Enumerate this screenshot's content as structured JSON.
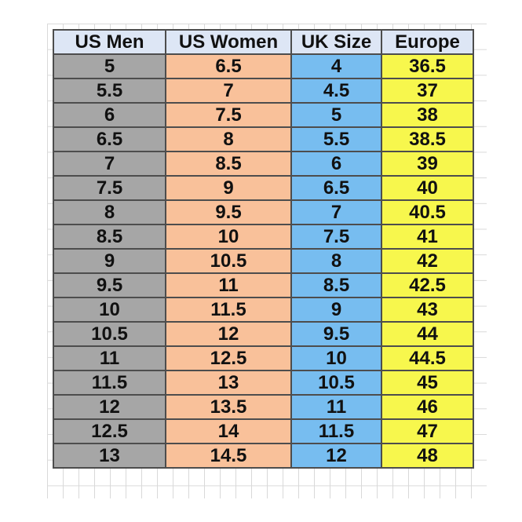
{
  "table": {
    "headers": [
      "US Men",
      "US Women",
      "UK Size",
      "Europe"
    ],
    "rows": [
      [
        "5",
        "6.5",
        "4",
        "36.5"
      ],
      [
        "5.5",
        "7",
        "4.5",
        "37"
      ],
      [
        "6",
        "7.5",
        "5",
        "38"
      ],
      [
        "6.5",
        "8",
        "5.5",
        "38.5"
      ],
      [
        "7",
        "8.5",
        "6",
        "39"
      ],
      [
        "7.5",
        "9",
        "6.5",
        "40"
      ],
      [
        "8",
        "9.5",
        "7",
        "40.5"
      ],
      [
        "8.5",
        "10",
        "7.5",
        "41"
      ],
      [
        "9",
        "10.5",
        "8",
        "42"
      ],
      [
        "9.5",
        "11",
        "8.5",
        "42.5"
      ],
      [
        "10",
        "11.5",
        "9",
        "43"
      ],
      [
        "10.5",
        "12",
        "9.5",
        "44"
      ],
      [
        "11",
        "12.5",
        "10",
        "44.5"
      ],
      [
        "11.5",
        "13",
        "10.5",
        "45"
      ],
      [
        "12",
        "13.5",
        "11",
        "46"
      ],
      [
        "12.5",
        "14",
        "11.5",
        "47"
      ],
      [
        "13",
        "14.5",
        "12",
        "48"
      ]
    ]
  },
  "colors": {
    "header_bg": "#dde6f5",
    "us_men_bg": "#a6a6a6",
    "us_women_bg": "#f9c19a",
    "uk_bg": "#77bdf0",
    "europe_bg": "#f7f74d",
    "border": "#4d4d4d"
  }
}
